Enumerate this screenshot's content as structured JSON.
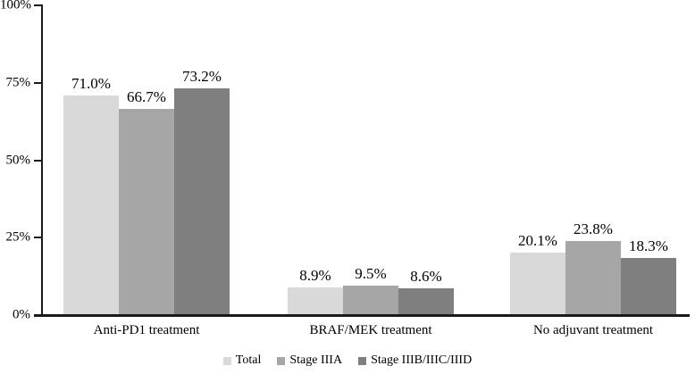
{
  "chart_data": {
    "type": "bar",
    "title": "",
    "categories": [
      "Anti-PD1 treatment",
      "BRAF/MEK treatment",
      "No adjuvant treatment"
    ],
    "series": [
      {
        "name": "Total",
        "color": "#d9d9d9",
        "values": [
          71.0,
          8.9,
          20.1
        ],
        "labels": [
          "71.0%",
          "8.9%",
          "20.1%"
        ]
      },
      {
        "name": "Stage IIIA",
        "color": "#a6a6a6",
        "values": [
          66.7,
          9.5,
          23.8
        ],
        "labels": [
          "66.7%",
          "9.5%",
          "23.8%"
        ]
      },
      {
        "name": "Stage IIIB/IIIC/IIID",
        "color": "#7f7f7f",
        "values": [
          73.2,
          8.6,
          18.3
        ],
        "labels": [
          "73.2%",
          "8.6%",
          "18.3%"
        ]
      }
    ],
    "y_axis": {
      "min": 0,
      "max": 100,
      "ticks": [
        {
          "value": 0,
          "label": "0%"
        },
        {
          "value": 25,
          "label": "25%"
        },
        {
          "value": 50,
          "label": "50%"
        },
        {
          "value": 75,
          "label": "75%"
        },
        {
          "value": 100,
          "label": "100%"
        }
      ]
    },
    "legend": {
      "position": "bottom",
      "entries": [
        "Total",
        "Stage IIIA",
        "Stage IIIB/IIIC/IIID"
      ]
    },
    "grid": false,
    "value_labels_shown": true,
    "axis_color": "#1a1a1a",
    "text_color": "#000000"
  }
}
